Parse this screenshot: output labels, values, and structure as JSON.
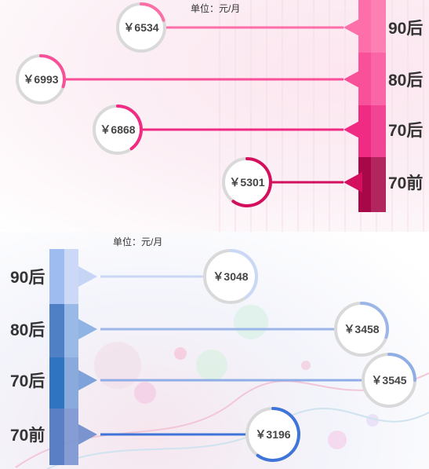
{
  "top_chart": {
    "unit_label": "单位：元/月",
    "colors": [
      "#fc6fa8",
      "#f9509a",
      "#f02b83",
      "#d40f5e"
    ],
    "column_colors": [
      "#fc6fa8",
      "#f9509a",
      "#f02b83",
      "#a80848"
    ],
    "track_color": "#d9d9d9"
  },
  "bottom_chart": {
    "unit_label": "单位：元/月",
    "colors": [
      "#cbd8f5",
      "#9cb6e8",
      "#90aee6",
      "#3f74d8"
    ],
    "column_colors": [
      "#9ebcf0",
      "#4f80c6",
      "#2e74c0",
      "#5b7fc4"
    ],
    "arrow_colors": [
      "#c6d5f5",
      "#8fb4e4",
      "#7ea2d9",
      "#7a94d0"
    ],
    "track_color": "#d9d9d9"
  },
  "chart_data": [
    {
      "type": "bar",
      "categories": [
        "90后",
        "80后",
        "70后",
        "70前"
      ],
      "values": [
        6534,
        6993,
        6868,
        5301
      ],
      "value_labels": [
        "￥6534",
        "￥6993",
        "￥6868",
        "￥5301"
      ],
      "ring_fraction": [
        0.2,
        0.3,
        0.4,
        0.6
      ],
      "title": "",
      "unit": "单位：元/月",
      "orientation": "horizontal",
      "direction": "right-to-left"
    },
    {
      "type": "bar",
      "categories": [
        "90后",
        "80后",
        "70后",
        "70前"
      ],
      "values": [
        3048,
        3458,
        3545,
        3196
      ],
      "value_labels": [
        "￥3048",
        "￥3458",
        "￥3545",
        "￥3196"
      ],
      "ring_fraction": [
        0.4,
        0.3,
        0.25,
        0.6
      ],
      "title": "",
      "unit": "单位：元/月",
      "orientation": "horizontal",
      "direction": "left-to-right"
    }
  ]
}
